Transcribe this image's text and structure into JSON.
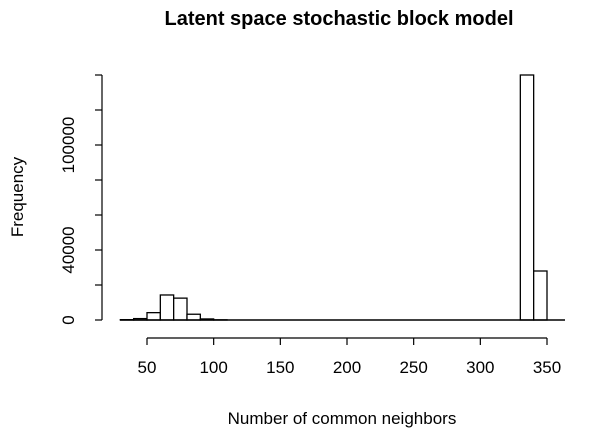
{
  "chart_data": {
    "type": "histogram",
    "title": "Latent space stochastic block model",
    "xlabel": "Number of common neighbors",
    "ylabel": "Frequency",
    "bin_width": 10,
    "bins": [
      {
        "x0": 30,
        "x1": 40,
        "count": 200
      },
      {
        "x0": 40,
        "x1": 50,
        "count": 800
      },
      {
        "x0": 50,
        "x1": 60,
        "count": 4200
      },
      {
        "x0": 60,
        "x1": 70,
        "count": 14300
      },
      {
        "x0": 70,
        "x1": 80,
        "count": 12500
      },
      {
        "x0": 80,
        "x1": 90,
        "count": 3300
      },
      {
        "x0": 90,
        "x1": 100,
        "count": 600
      },
      {
        "x0": 100,
        "x1": 110,
        "count": 100
      },
      {
        "x0": 330,
        "x1": 340,
        "count": 140000
      },
      {
        "x0": 340,
        "x1": 350,
        "count": 28000
      }
    ],
    "xlim": [
      30,
      350
    ],
    "ylim": [
      0,
      140000
    ],
    "x_ticks": [
      50,
      100,
      150,
      200,
      250,
      300,
      350
    ],
    "x_tick_labels": [
      "50",
      "100",
      "150",
      "200",
      "250",
      "300",
      "350"
    ],
    "y_ticks": [
      0,
      20000,
      40000,
      60000,
      80000,
      100000,
      120000,
      140000
    ],
    "y_tick_labels": [
      "0",
      "",
      "40000",
      "",
      "",
      "100000",
      "",
      ""
    ],
    "grid": false
  }
}
